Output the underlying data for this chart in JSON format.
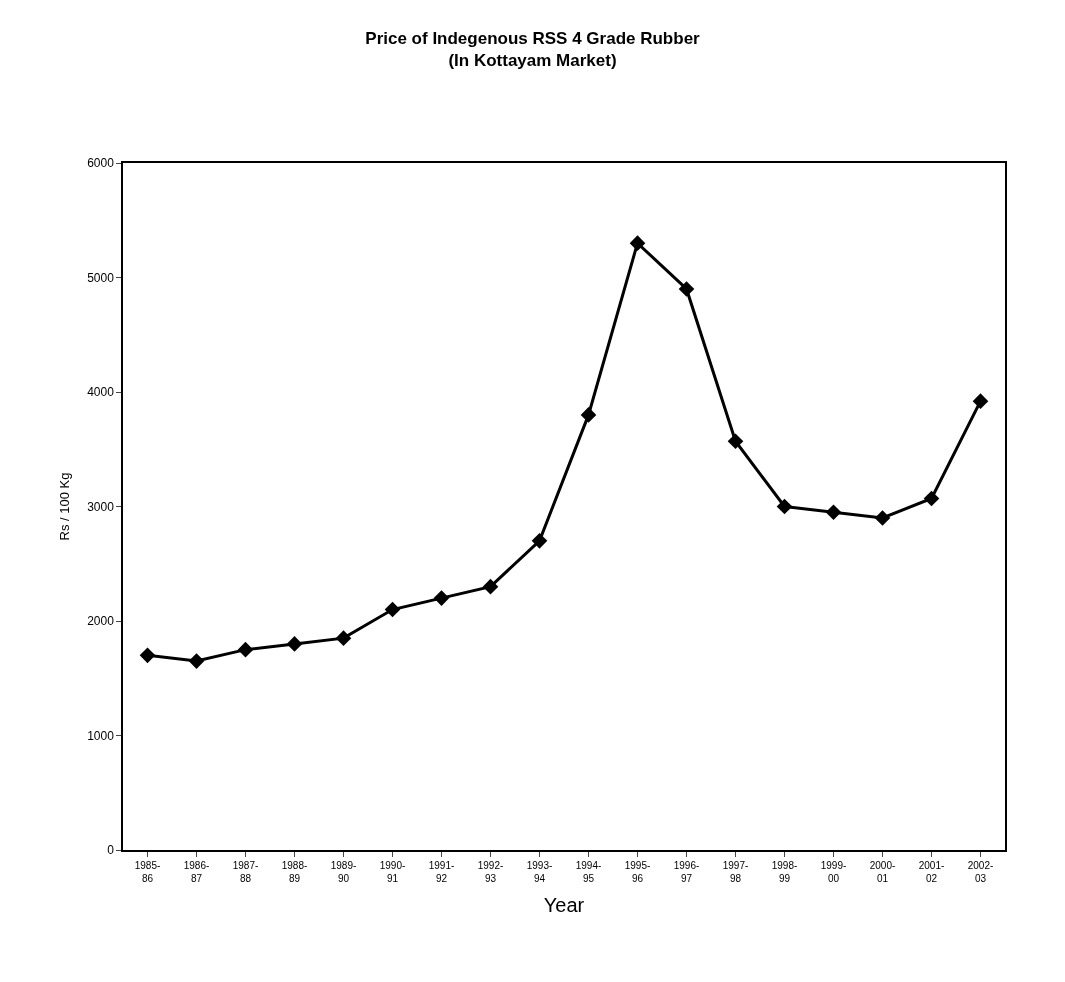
{
  "chart_data": {
    "type": "line",
    "title": "Price of Indegenous RSS 4 Grade Rubber\n(In Kottayam Market)",
    "xlabel": "Year",
    "ylabel": "Rs / 100 Kg",
    "categories": [
      "1985-86",
      "1986-87",
      "1987-88",
      "1988-89",
      "1989-90",
      "1990-91",
      "1991-92",
      "1992-93",
      "1993-94",
      "1994-95",
      "1995-96",
      "1996-97",
      "1997-98",
      "1998-99",
      "1999-00",
      "2000-01",
      "2001-02",
      "2002-03"
    ],
    "series": [
      {
        "color": "#000000",
        "values": [
          1700,
          1650,
          1750,
          1800,
          1850,
          2100,
          2200,
          2300,
          2700,
          3800,
          5300,
          4900,
          3570,
          3000,
          2950,
          2900,
          3070,
          3920
        ]
      }
    ],
    "ylim": [
      0,
      6000
    ],
    "yticks": [
      0,
      1000,
      2000,
      3000,
      4000,
      5000,
      6000
    ],
    "legend": false,
    "marker": "diamond",
    "line_style": "solid"
  }
}
